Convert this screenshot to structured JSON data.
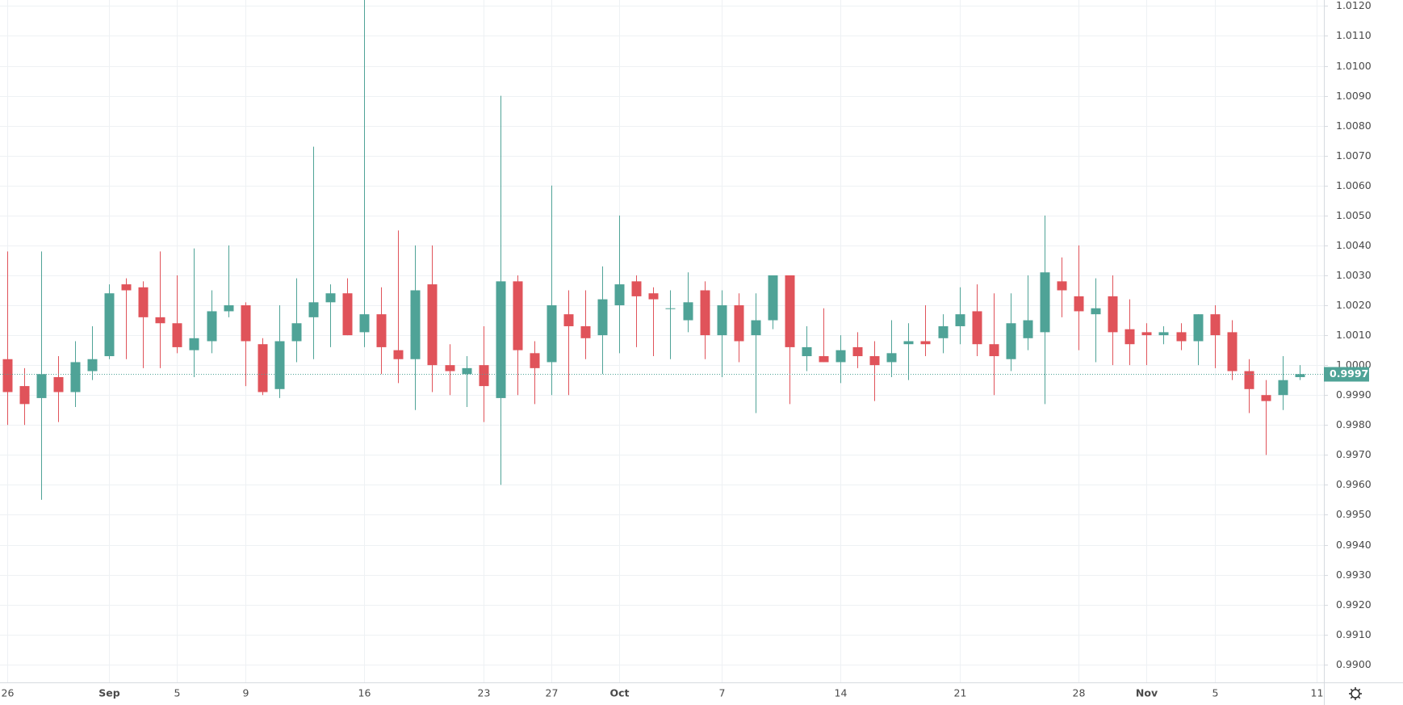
{
  "chart_data": {
    "type": "candlestick",
    "categories": [
      "26",
      null,
      null,
      null,
      null,
      null,
      "Sep",
      null,
      null,
      null,
      "5",
      null,
      null,
      null,
      "9",
      null,
      null,
      null,
      null,
      null,
      null,
      "16",
      null,
      null,
      null,
      null,
      null,
      null,
      "23",
      null,
      null,
      null,
      "27",
      null,
      null,
      null,
      "Oct",
      null,
      null,
      null,
      null,
      null,
      "7",
      null,
      null,
      null,
      null,
      null,
      null,
      "14",
      null,
      null,
      null,
      null,
      null,
      null,
      "21",
      null,
      null,
      null,
      null,
      null,
      null,
      "28",
      null,
      null,
      null,
      "Nov",
      null,
      null,
      null,
      "5",
      null,
      null,
      null,
      null,
      null,
      "11"
    ],
    "open": [
      1.0002,
      0.9993,
      0.9989,
      0.9996,
      0.9991,
      0.9998,
      1.0003,
      1.0027,
      1.0026,
      1.0016,
      1.0014,
      1.0005,
      1.0008,
      1.0018,
      1.002,
      1.0007,
      0.9992,
      1.0008,
      1.0016,
      1.0021,
      1.0024,
      1.0011,
      1.0017,
      1.0005,
      1.0002,
      1.0027,
      1,
      0.9997,
      1,
      0.9989,
      1.0028,
      1.0004,
      1.0001,
      1.0017,
      1.0013,
      1.001,
      1.002,
      1.0028,
      1.0024,
      1.0019,
      1.0015,
      1.0025,
      1.001,
      1.002,
      1.001,
      1.0015,
      1.003,
      1.0003,
      1.0003,
      1.0001,
      1.0006,
      1.0003,
      1.0001,
      1.0007,
      1.0008,
      1.0009,
      1.0013,
      1.0018,
      1.0007,
      1.0002,
      1.0009,
      1.0011,
      1.0028,
      1.0023,
      1.0017,
      1.0023,
      1.0012,
      1.0011,
      1.001,
      1.0011,
      1.0008,
      1.0017,
      1.0011,
      0.9998,
      0.999,
      0.999,
      0.9996,
      null
    ],
    "high": [
      1.0038,
      0.9999,
      1.0038,
      1.0003,
      1.0008,
      1.0013,
      1.0027,
      1.0029,
      1.0028,
      1.0038,
      1.003,
      1.0039,
      1.0025,
      1.004,
      1.0021,
      1.0009,
      1.002,
      1.0029,
      1.0073,
      1.0027,
      1.0029,
      1.0125,
      1.0026,
      1.0045,
      1.004,
      1.004,
      1.0007,
      1.0003,
      1.0013,
      1.009,
      1.003,
      1.0008,
      1.006,
      1.0025,
      1.0025,
      1.0033,
      1.005,
      1.003,
      1.0026,
      1.0025,
      1.0031,
      1.0028,
      1.0025,
      1.0024,
      1.0024,
      1.003,
      1.003,
      1.0013,
      1.0019,
      1.001,
      1.0011,
      1.0008,
      1.0015,
      1.0014,
      1.002,
      1.0017,
      1.0026,
      1.0027,
      1.0024,
      1.0024,
      1.003,
      1.005,
      1.0036,
      1.004,
      1.0029,
      1.003,
      1.0022,
      1.0014,
      1.0013,
      1.0014,
      1.0017,
      1.002,
      1.0015,
      1.0002,
      0.9995,
      1.0003,
      1,
      null
    ],
    "low": [
      0.998,
      0.998,
      0.9955,
      0.9981,
      0.9986,
      0.9995,
      1.0002,
      1.0002,
      0.9999,
      0.9999,
      1.0004,
      0.9996,
      1.0004,
      1.0016,
      0.9993,
      0.999,
      0.9989,
      1.0001,
      1.0002,
      1.0006,
      1.001,
      1.0006,
      0.9997,
      0.9994,
      0.9985,
      0.9991,
      0.999,
      0.9986,
      0.9981,
      0.996,
      0.999,
      0.9987,
      0.999,
      0.999,
      1.0002,
      0.9997,
      1.0004,
      1.0006,
      1.0003,
      1.0002,
      1.0011,
      1.0002,
      0.9996,
      1.0001,
      0.9984,
      1.0012,
      0.9987,
      0.9998,
      1.0001,
      0.9994,
      0.9999,
      0.9988,
      0.9996,
      0.9995,
      1.0003,
      1.0004,
      1.0007,
      1.0003,
      0.999,
      0.9998,
      1.0005,
      0.9987,
      1.0016,
      1.0005,
      1.0001,
      1,
      1,
      1,
      1.0007,
      1.0005,
      1,
      0.9999,
      0.9995,
      0.9984,
      0.997,
      0.9985,
      0.9995,
      null
    ],
    "close": [
      0.9991,
      0.9987,
      0.9997,
      0.9991,
      1.0001,
      1.0002,
      1.0024,
      1.0025,
      1.0016,
      1.0014,
      1.0006,
      1.0009,
      1.0018,
      1.002,
      1.0008,
      0.9991,
      1.0008,
      1.0014,
      1.0021,
      1.0024,
      1.001,
      1.0017,
      1.0006,
      1.0002,
      1.0025,
      1,
      0.9998,
      0.9999,
      0.9993,
      1.0028,
      1.0005,
      0.9999,
      1.002,
      1.0013,
      1.0009,
      1.0022,
      1.0027,
      1.0023,
      1.0022,
      1.0019,
      1.0021,
      1.001,
      1.002,
      1.0008,
      1.0015,
      1.003,
      1.0006,
      1.0006,
      1.0001,
      1.0005,
      1.0003,
      1,
      1.0004,
      1.0008,
      1.0007,
      1.0013,
      1.0017,
      1.0007,
      1.0003,
      1.0014,
      1.0015,
      1.0031,
      1.0025,
      1.0018,
      1.0019,
      1.0011,
      1.0007,
      1.001,
      1.0011,
      1.0008,
      1.0017,
      1.001,
      0.9998,
      0.9992,
      0.9988,
      0.9995,
      0.9997,
      null
    ],
    "up_color": "#4fa397",
    "down_color": "#e0535a",
    "last_price": 0.9997,
    "ylim": [
      0.9894,
      1.0122
    ],
    "yticks": [
      {
        "value": 0.99,
        "label": "0.9900"
      },
      {
        "value": 0.991,
        "label": "0.9910"
      },
      {
        "value": 0.992,
        "label": "0.9920"
      },
      {
        "value": 0.993,
        "label": "0.9930"
      },
      {
        "value": 0.994,
        "label": "0.9940"
      },
      {
        "value": 0.995,
        "label": "0.9950"
      },
      {
        "value": 0.996,
        "label": "0.9960"
      },
      {
        "value": 0.997,
        "label": "0.9970"
      },
      {
        "value": 0.998,
        "label": "0.9980"
      },
      {
        "value": 0.999,
        "label": "0.9990"
      },
      {
        "value": 1,
        "label": "1.0000"
      },
      {
        "value": 1.001,
        "label": "1.0010"
      },
      {
        "value": 1.002,
        "label": "1.0020"
      },
      {
        "value": 1.003,
        "label": "1.0030"
      },
      {
        "value": 1.004,
        "label": "1.0040"
      },
      {
        "value": 1.005,
        "label": "1.0050"
      },
      {
        "value": 1.006,
        "label": "1.0060"
      },
      {
        "value": 1.007,
        "label": "1.0070"
      },
      {
        "value": 1.008,
        "label": "1.0080"
      },
      {
        "value": 1.009,
        "label": "1.0090"
      },
      {
        "value": 1.01,
        "label": "1.0100"
      },
      {
        "value": 1.011,
        "label": "1.0110"
      },
      {
        "value": 1.012,
        "label": "1.0120"
      }
    ],
    "grid": true
  }
}
